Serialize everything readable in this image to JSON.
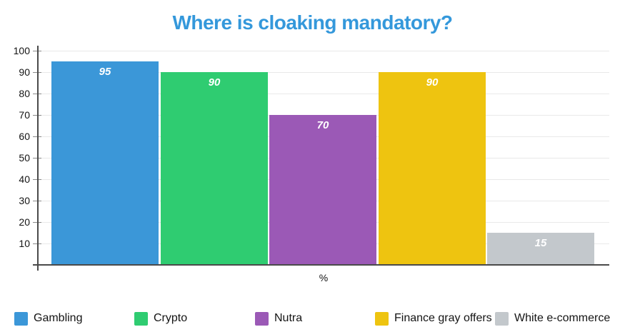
{
  "chart_data": {
    "type": "bar",
    "title": "Where is cloaking mandatory?",
    "xlabel": "%",
    "ylabel": "",
    "categories": [
      "Gambling",
      "Crypto",
      "Nutra",
      "Finance gray offers",
      "White e-commerce"
    ],
    "values": [
      95,
      90,
      70,
      90,
      15
    ],
    "bar_colors": [
      "#3b97d8",
      "#2fcc71",
      "#9b59b6",
      "#eec410",
      "#c3c8cc"
    ],
    "value_label_color": "#ffffff",
    "ylim": [
      0,
      100
    ],
    "yticks": [
      10,
      20,
      30,
      40,
      50,
      60,
      70,
      80,
      90,
      100
    ],
    "grid": true,
    "legend_position": "bottom"
  },
  "style": {
    "title_color": "#3498db",
    "axis_color": "#4a4a4a",
    "tick_color": "#8a8a8a",
    "gridline_color": "#e9e9e9",
    "text_color": "#141414",
    "background": "#ffffff"
  },
  "legend": {
    "items": [
      {
        "label": "Gambling",
        "color": "#3b97d8"
      },
      {
        "label": "Crypto",
        "color": "#2fcc71"
      },
      {
        "label": "Nutra",
        "color": "#9b59b6"
      },
      {
        "label": "Finance gray offers",
        "color": "#eec410"
      },
      {
        "label": "White e-commerce",
        "color": "#c3c8cc"
      }
    ]
  }
}
